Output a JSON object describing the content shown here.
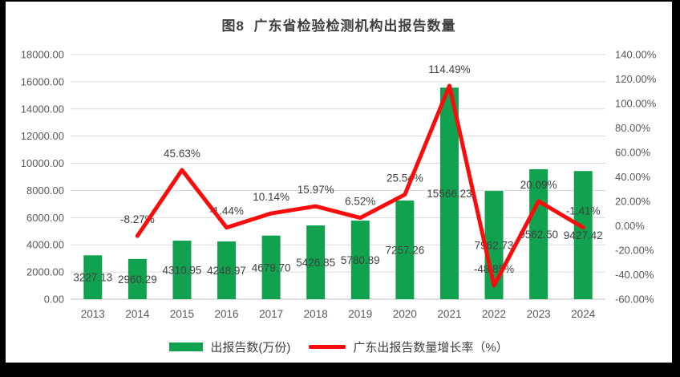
{
  "title": "图8  广东省检验检测机构出报告数量",
  "colors": {
    "bar": "#11A24F",
    "line": "#FA0C0C",
    "grid": "#D9D9D9",
    "axis_line": "#BFBFBF",
    "tick_text": "#595959",
    "label_text": "#404040",
    "frame": "#000000",
    "panel": "#FFFFFF"
  },
  "chart_data": {
    "type": "bar+line combo",
    "title": "图8  广东省检验检测机构出报告数量",
    "categories": [
      "2013",
      "2014",
      "2015",
      "2016",
      "2017",
      "2018",
      "2019",
      "2020",
      "2021",
      "2022",
      "2023",
      "2024"
    ],
    "series": [
      {
        "name": "出报告数(万份)",
        "type": "bar",
        "axis": "left",
        "color": "#11A24F",
        "values": [
          3227.13,
          2960.29,
          4310.95,
          4248.97,
          4679.7,
          5426.85,
          5780.89,
          7257.26,
          15566.23,
          7962.73,
          9562.5,
          9427.42
        ],
        "labels": [
          "3227.13",
          "2960.29",
          "4310.95",
          "4248.97",
          "4679.70",
          "5426.85",
          "5780.89",
          "7257.26",
          "15566.23",
          "7962.73",
          "9562.50",
          "9427.42"
        ]
      },
      {
        "name": "广东出报告数量增长率（%）",
        "type": "line",
        "axis": "right",
        "color": "#FA0C0C",
        "values": [
          null,
          -8.27,
          45.63,
          -1.44,
          10.14,
          15.97,
          6.52,
          25.54,
          114.49,
          -48.85,
          20.09,
          -1.41
        ],
        "labels": [
          null,
          "-8.27%",
          "45.63%",
          "-1.44%",
          "10.14%",
          "15.97%",
          "6.52%",
          "25.54%",
          "114.49%",
          "-48.85%",
          "20.09%",
          "-1.41%"
        ]
      }
    ],
    "left_axis": {
      "min": 0,
      "max": 18000,
      "step": 2000,
      "tick_labels": [
        "0.00",
        "2000.00",
        "4000.00",
        "6000.00",
        "8000.00",
        "10000.00",
        "12000.00",
        "14000.00",
        "16000.00",
        "18000.00"
      ]
    },
    "right_axis": {
      "min": -60,
      "max": 140,
      "step": 20,
      "tick_labels": [
        "-60.00%",
        "-40.00%",
        "-20.00%",
        "0.00%",
        "20.00%",
        "40.00%",
        "60.00%",
        "80.00%",
        "100.00%",
        "120.00%",
        "140.00%"
      ]
    },
    "grid": true,
    "legend_position": "bottom"
  }
}
